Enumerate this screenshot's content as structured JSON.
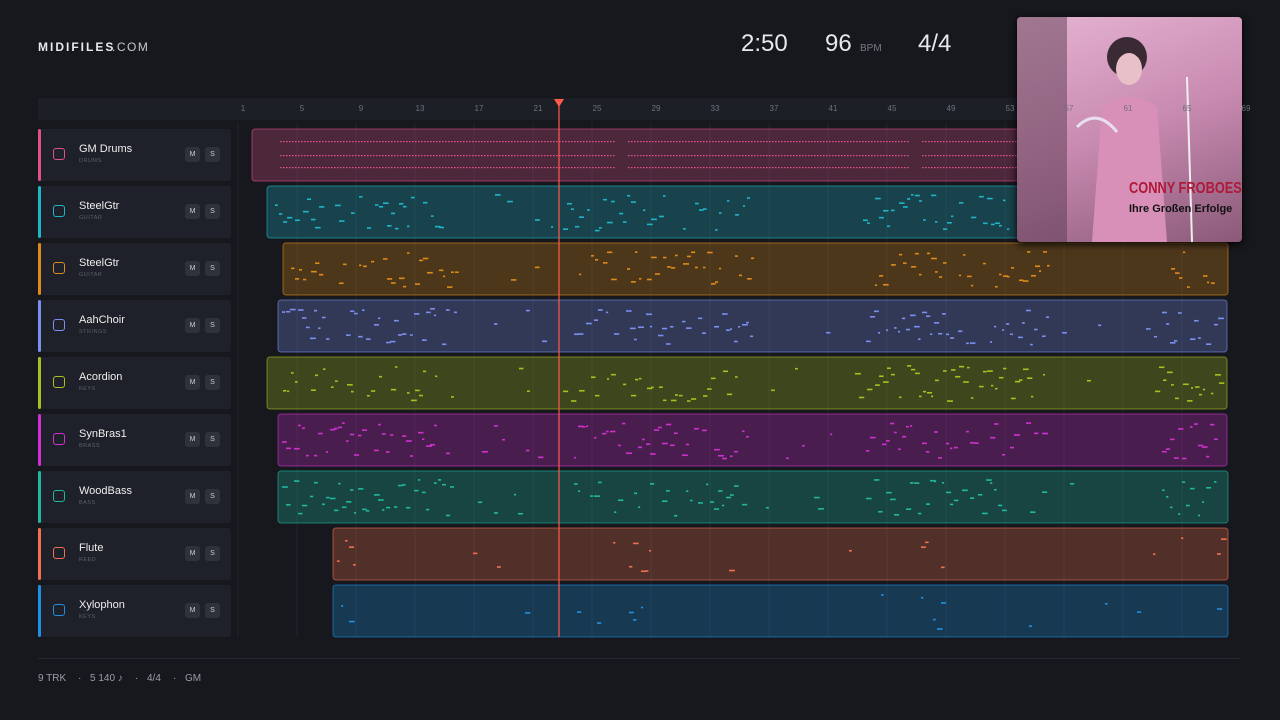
{
  "header": {
    "logo": "MIDIFILES",
    "domain": ".COM"
  },
  "transport": {
    "time": "2:50",
    "tempo": "96",
    "tempo_unit": "BPM",
    "signature": "4/4"
  },
  "ruler": [
    "1",
    "5",
    "9",
    "13",
    "17",
    "21",
    "25",
    "29",
    "33",
    "37",
    "41",
    "45",
    "49",
    "53",
    "57",
    "61",
    "65",
    "69"
  ],
  "tracks": [
    {
      "name": "GM Drums",
      "category": "DRUMS",
      "mute": "M",
      "solo": "S"
    },
    {
      "name": "SteelGtr",
      "category": "GUITAR",
      "mute": "M",
      "solo": "S"
    },
    {
      "name": "SteelGtr",
      "category": "GUITAR",
      "mute": "M",
      "solo": "S"
    },
    {
      "name": "AahChoir",
      "category": "STRINGS",
      "mute": "M",
      "solo": "S"
    },
    {
      "name": "Acordion",
      "category": "KEYS",
      "mute": "M",
      "solo": "S"
    },
    {
      "name": "SynBras1",
      "category": "BRASS",
      "mute": "M",
      "solo": "S"
    },
    {
      "name": "WoodBass",
      "category": "BASS",
      "mute": "M",
      "solo": "S"
    },
    {
      "name": "Flute",
      "category": "REED",
      "mute": "M",
      "solo": "S"
    },
    {
      "name": "Xylophon",
      "category": "KEYS",
      "mute": "M",
      "solo": "S"
    }
  ],
  "album": {
    "artist": "CONNY FROBOESS",
    "title": "Ihre Großen Erfolge"
  },
  "footer": [
    "9 TRK",
    "5 140 ♪",
    "4/4",
    "GM"
  ]
}
